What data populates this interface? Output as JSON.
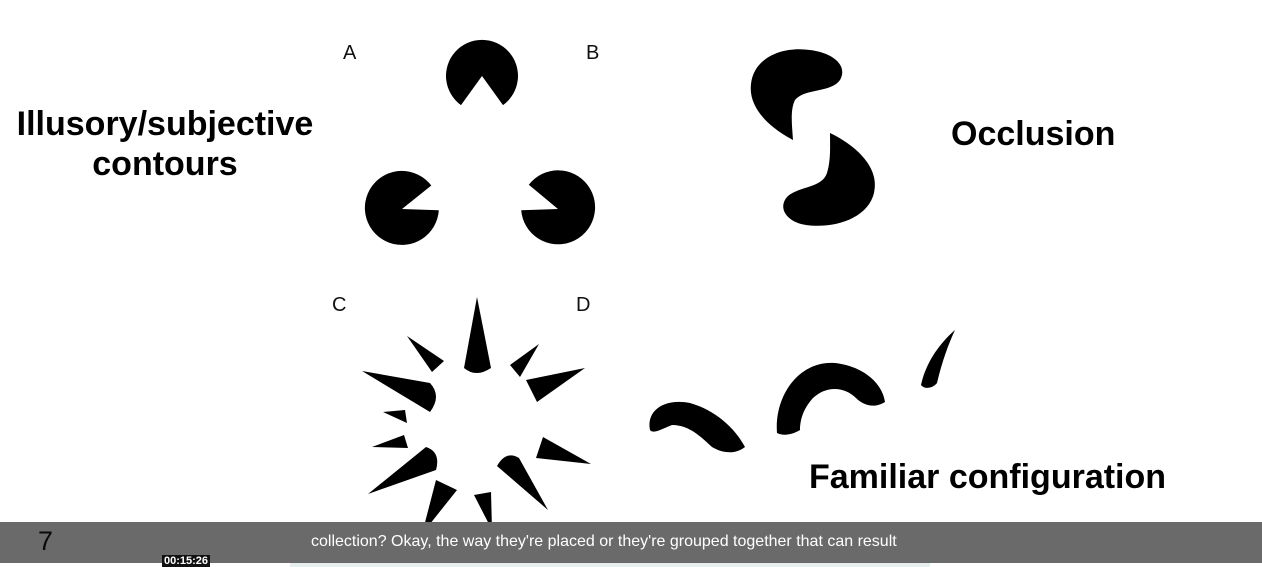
{
  "slide": {
    "labels": {
      "a": "A",
      "b": "B",
      "c": "C",
      "d": "D"
    },
    "headings": {
      "illusory_line1": "Illusory/subjective",
      "illusory_line2": "contours",
      "occlusion": "Occlusion",
      "familiar": "Familiar configuration"
    },
    "number": "7"
  },
  "player": {
    "caption": "collection? Okay, the way they're placed or they're grouped together that can result",
    "timestamp": "00:15:26"
  },
  "colors": {
    "shape_fill": "#000000",
    "caption_bar": "#6a6a6a",
    "caption_text": "#ffffff",
    "timestamp_bg": "#111111"
  }
}
